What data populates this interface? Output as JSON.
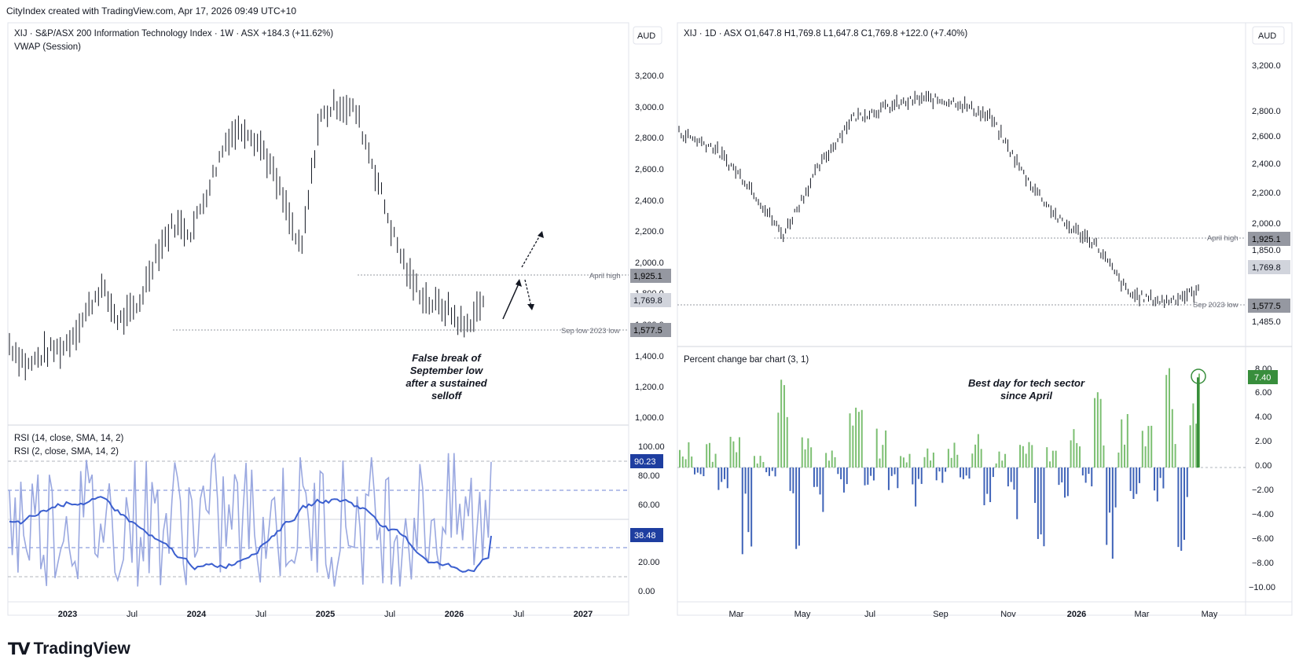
{
  "header": {
    "credit": "CityIndex created with TradingView.com, Apr 17, 2026 09:49 UTC+10"
  },
  "left_chart": {
    "title": "XIJ · S&P/ASX 200 Information Technology Index · 1W · ASX  +184.3 (+11.62%)",
    "indicator": "VWAP (Session)",
    "currency": "AUD",
    "price_ticks": [
      "3,200.0",
      "3,000.0",
      "2,800.0",
      "2,600.0",
      "2,400.0",
      "2,200.0",
      "2,000.0",
      "1,800.0",
      "1,600.0",
      "1,400.0",
      "1,200.0",
      "1,000.0"
    ],
    "x_ticks": [
      "2023",
      "Jul",
      "2024",
      "Jul",
      "2025",
      "Jul",
      "2026",
      "Jul",
      "2027"
    ],
    "levels": [
      {
        "label": "April high",
        "value": "1,925.1"
      },
      {
        "label": "Sep low 2023 low",
        "value": "1,577.5"
      }
    ],
    "last_price": "1,769.8",
    "annotation": [
      "False break of",
      "September low",
      "after a sustained",
      "selloff"
    ],
    "rsi": {
      "legend_1": "RSI (14, close, SMA, 14, 2)",
      "legend_2": "RSI (2, close, SMA, 14, 2)",
      "ticks": [
        "100.00",
        "80.00",
        "60.00",
        "40.00",
        "20.00",
        "0.00"
      ],
      "value_2": "90.23",
      "value_14": "38.48"
    }
  },
  "right_chart": {
    "title": "XIJ · 1D · ASX  O1,647.8  H1,769.8  L1,647.8  C1,769.8  +122.0 (+7.40%)",
    "currency": "AUD",
    "price_ticks": [
      "3,200.0",
      "2,800.0",
      "2,600.0",
      "2,400.0",
      "2,200.0",
      "2,000.0",
      "1,850.0",
      "1,730.0",
      "1,605.0",
      "1,485.0"
    ],
    "x_ticks": [
      "Mar",
      "May",
      "Jul",
      "Sep",
      "Nov",
      "2026",
      "Mar",
      "May"
    ],
    "levels": [
      {
        "label": "April high",
        "value": "1,925.1"
      },
      {
        "label": "Sep 2023 low",
        "value": "1,577.5"
      }
    ],
    "last_price": "1,769.8",
    "pct": {
      "legend": "Percent change bar chart (3, 1)",
      "ticks": [
        "8.00",
        "6.00",
        "4.00",
        "2.00",
        "0.00",
        "−2.00",
        "−4.00",
        "−6.00",
        "−8.00",
        "−10.00"
      ],
      "value": "7.40",
      "annotation": [
        "Best day for tech sector",
        "since April"
      ]
    }
  },
  "colors": {
    "up": "#26a69a",
    "green": "#388e3c",
    "blue": "#3f63b8",
    "rsi14": "#3b5fcf",
    "rsi2": "#9aa8e0",
    "price_badge": "#d1d4dc",
    "last_badge": "#a9acb7"
  },
  "chart_data": [
    {
      "type": "line",
      "title": "XIJ · S&P/ASX 200 Information Technology Index · 1W · ASX",
      "x": [
        "2022-10",
        "2022-12",
        "2023-02",
        "2023-04",
        "2023-06",
        "2023-08",
        "2023-10",
        "2023-12",
        "2024-02",
        "2024-04",
        "2024-06",
        "2024-08",
        "2024-10",
        "2024-12",
        "2025-01",
        "2025-03",
        "2025-04",
        "2025-06",
        "2025-08",
        "2025-09",
        "2025-10",
        "2025-11",
        "2025-12",
        "2026-01",
        "2026-02",
        "2026-03",
        "2026-04"
      ],
      "series": [
        {
          "values": [
            1500,
            1360,
            1450,
            1480,
            1650,
            1860,
            1640,
            1720,
            2050,
            2250,
            2200,
            2500,
            2800,
            2850,
            2700,
            2400,
            2060,
            2900,
            3000,
            2950,
            2600,
            2200,
            1900,
            1760,
            1720,
            1600,
            1770
          ]
        }
      ],
      "ylim": [
        1000,
        3300
      ],
      "levels": [
        {
          "label": "April high",
          "value": 1925.1
        },
        {
          "label": "Sep low 2023 low",
          "value": 1577.5
        }
      ]
    },
    {
      "type": "line",
      "title": "",
      "series": [
        {
          "name": "RSI (14, close, SMA, 14, 2)",
          "last": 38.48
        },
        {
          "name": "RSI (2, close, SMA, 14, 2)",
          "last": 90.23
        }
      ],
      "ylim": [
        0,
        100
      ]
    },
    {
      "type": "line",
      "title": "XIJ · 1D · ASX",
      "x": [
        "2025-01",
        "2025-02",
        "2025-03",
        "2025-04",
        "2025-05",
        "2025-06",
        "2025-07",
        "2025-08",
        "2025-09",
        "2025-10",
        "2025-11",
        "2025-12",
        "2026-01",
        "2026-02",
        "2026-03",
        "2026-04"
      ],
      "series": [
        {
          "values": [
            2850,
            2750,
            2500,
            2150,
            2600,
            2950,
            3020,
            3080,
            3060,
            2950,
            2550,
            2250,
            2100,
            1750,
            1700,
            1770
          ]
        }
      ],
      "ylim": [
        1400,
        3350
      ]
    },
    {
      "type": "bar",
      "title": "Percent change bar chart (3, 1)",
      "series": [
        {
          "values": [
            2.0,
            -1.0,
            1.8,
            -2.5,
            3.0,
            -6.5,
            1.2,
            -0.8,
            6.5,
            -6.2,
            2.5,
            -3.5,
            1.5,
            -2.0,
            4.5,
            -1.5,
            2.8,
            -2.2,
            1.0,
            -3.0,
            2.2,
            -1.2,
            1.8,
            -0.9,
            2.4,
            -2.8,
            1.2,
            -4.5,
            2.0,
            -6.0,
            1.5,
            -3.2,
            3.0,
            -2.0,
            5.8,
            -9.5,
            4.0,
            -5.0,
            3.5,
            -2.5,
            7.2,
            -6.4,
            7.4
          ]
        }
      ],
      "ylim": [
        -11,
        9
      ],
      "last": 7.4
    }
  ]
}
